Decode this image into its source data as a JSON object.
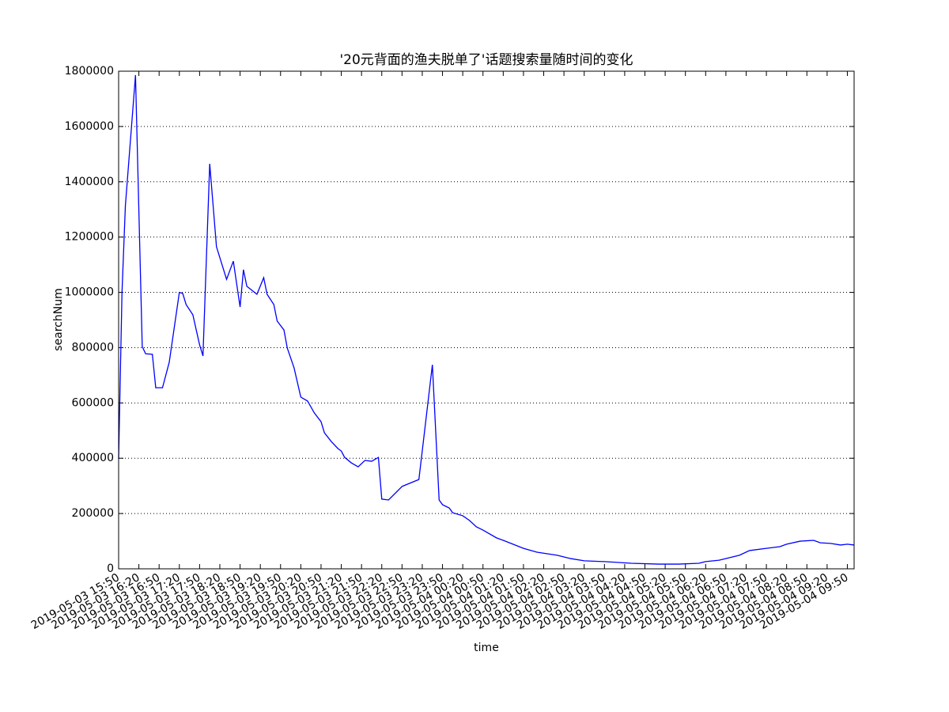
{
  "chart_data": {
    "type": "line",
    "title": "'20元背面的渔夫脱单了'话题搜索量随时间的变化",
    "x_label": "time",
    "y_label": "searchNum",
    "x": [
      "2019-05-03 15:50",
      "2019-05-03 15:55",
      "2019-05-03 16:00",
      "2019-05-03 16:15",
      "2019-05-03 16:25",
      "2019-05-03 16:30",
      "2019-05-03 16:40",
      "2019-05-03 16:45",
      "2019-05-03 16:55",
      "2019-05-03 17:05",
      "2019-05-03 17:20",
      "2019-05-03 17:25",
      "2019-05-03 17:30",
      "2019-05-03 17:40",
      "2019-05-03 17:50",
      "2019-05-03 17:55",
      "2019-05-03 18:05",
      "2019-05-03 18:15",
      "2019-05-03 18:30",
      "2019-05-03 18:40",
      "2019-05-03 18:50",
      "2019-05-03 18:55",
      "2019-05-03 19:00",
      "2019-05-03 19:15",
      "2019-05-03 19:25",
      "2019-05-03 19:30",
      "2019-05-03 19:40",
      "2019-05-03 19:45",
      "2019-05-03 19:55",
      "2019-05-03 20:00",
      "2019-05-03 20:10",
      "2019-05-03 20:20",
      "2019-05-03 20:30",
      "2019-05-03 20:40",
      "2019-05-03 20:50",
      "2019-05-03 20:55",
      "2019-05-03 21:05",
      "2019-05-03 21:15",
      "2019-05-03 21:20",
      "2019-05-03 21:25",
      "2019-05-03 21:35",
      "2019-05-03 21:45",
      "2019-05-03 21:55",
      "2019-05-03 22:05",
      "2019-05-03 22:15",
      "2019-05-03 22:20",
      "2019-05-03 22:30",
      "2019-05-03 22:50",
      "2019-05-03 23:15",
      "2019-05-03 23:35",
      "2019-05-03 23:45",
      "2019-05-03 23:50",
      "2019-05-04 00:00",
      "2019-05-04 00:05",
      "2019-05-04 00:20",
      "2019-05-04 00:30",
      "2019-05-04 00:40",
      "2019-05-04 00:50",
      "2019-05-04 01:10",
      "2019-05-04 01:20",
      "2019-05-04 01:50",
      "2019-05-04 02:10",
      "2019-05-04 02:40",
      "2019-05-04 03:00",
      "2019-05-04 03:20",
      "2019-05-04 03:50",
      "2019-05-04 04:30",
      "2019-05-04 05:10",
      "2019-05-04 05:40",
      "2019-05-04 06:10",
      "2019-05-04 06:20",
      "2019-05-04 06:40",
      "2019-05-04 07:10",
      "2019-05-04 07:25",
      "2019-05-04 07:50",
      "2019-05-04 08:10",
      "2019-05-04 08:20",
      "2019-05-04 08:40",
      "2019-05-04 09:00",
      "2019-05-04 09:10",
      "2019-05-04 09:25",
      "2019-05-04 09:40",
      "2019-05-04 09:50",
      "2019-05-04 10:00"
    ],
    "series": [
      {
        "color": "#0000ff",
        "values": [
          398000,
          1000000,
          1313000,
          1786000,
          804000,
          778000,
          776000,
          655000,
          655000,
          747000,
          1000000,
          996000,
          956000,
          919000,
          810000,
          770000,
          1465000,
          1165000,
          1047000,
          1113000,
          947000,
          1082000,
          1022000,
          993000,
          1053000,
          993000,
          956000,
          896000,
          864000,
          798000,
          727000,
          621000,
          607000,
          564000,
          532000,
          492000,
          461000,
          435000,
          426000,
          403000,
          383000,
          369000,
          392000,
          389000,
          403000,
          252000,
          249000,
          298000,
          323000,
          738000,
          249000,
          232000,
          220000,
          203000,
          192000,
          175000,
          152000,
          140000,
          112000,
          103000,
          74000,
          60000,
          49000,
          37000,
          29000,
          26000,
          20000,
          17000,
          17000,
          20000,
          26000,
          31000,
          49000,
          66000,
          74000,
          80000,
          89000,
          100000,
          103000,
          94000,
          92000,
          86000,
          89000,
          86000
        ]
      }
    ],
    "xlim": [
      "2019-05-03 15:50",
      "2019-05-04 10:00"
    ],
    "xticks": [
      "2019-05-03 15:50",
      "2019-05-03 16:20",
      "2019-05-03 16:50",
      "2019-05-03 17:20",
      "2019-05-03 17:50",
      "2019-05-03 18:20",
      "2019-05-03 18:50",
      "2019-05-03 19:20",
      "2019-05-03 19:50",
      "2019-05-03 20:20",
      "2019-05-03 20:50",
      "2019-05-03 21:20",
      "2019-05-03 21:50",
      "2019-05-03 22:20",
      "2019-05-03 22:50",
      "2019-05-03 23:20",
      "2019-05-03 23:50",
      "2019-05-04 00:20",
      "2019-05-04 00:50",
      "2019-05-04 01:20",
      "2019-05-04 01:50",
      "2019-05-04 02:20",
      "2019-05-04 02:50",
      "2019-05-04 03:20",
      "2019-05-04 03:50",
      "2019-05-04 04:20",
      "2019-05-04 04:50",
      "2019-05-04 05:20",
      "2019-05-04 05:50",
      "2019-05-04 06:20",
      "2019-05-04 06:50",
      "2019-05-04 07:20",
      "2019-05-04 07:50",
      "2019-05-04 08:20",
      "2019-05-04 08:50",
      "2019-05-04 09:20",
      "2019-05-04 09:50"
    ],
    "ylim": [
      0,
      1800000
    ],
    "yticks": [
      0,
      200000,
      400000,
      600000,
      800000,
      1000000,
      1200000,
      1400000,
      1600000,
      1800000
    ],
    "grid": true
  }
}
